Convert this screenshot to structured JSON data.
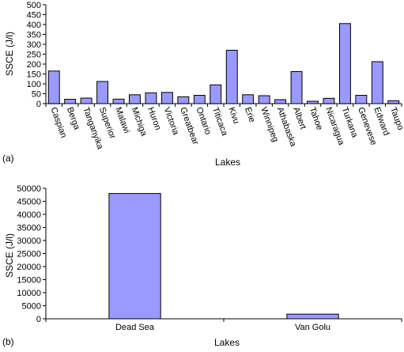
{
  "chart_data": [
    {
      "type": "bar",
      "panel_label": "(a)",
      "xlabel": "Lakes",
      "ylabel": "SSCE (J/l)",
      "categories": [
        "Caspian",
        "Berga",
        "Tanganyika",
        "Superior",
        "Malawi",
        "Michiga",
        "Huron",
        "Victoria",
        "Greatbear",
        "Ontario",
        "Titicaca",
        "Kivu",
        "Erie",
        "Winnipeg",
        "Athabaska",
        "Albert",
        "Tahoe",
        "Nicaragua",
        "Turkana",
        "Genevese",
        "Edward",
        "Taupo"
      ],
      "values": [
        165,
        22,
        28,
        112,
        23,
        45,
        55,
        57,
        35,
        42,
        95,
        270,
        45,
        40,
        20,
        162,
        12,
        27,
        405,
        42,
        212,
        15
      ],
      "ylim": [
        0,
        500
      ],
      "yticks": [
        "0",
        "50",
        "100",
        "150",
        "200",
        "250",
        "300",
        "350",
        "400",
        "450",
        "500"
      ],
      "bar_color": "#9999ff",
      "grid": false
    },
    {
      "type": "bar",
      "panel_label": "(b)",
      "xlabel": "Lakes",
      "ylabel": "SSCE (J/l)",
      "categories": [
        "Dead Sea",
        "Van Golu"
      ],
      "values": [
        48000,
        1800
      ],
      "ylim": [
        0,
        50000
      ],
      "yticks": [
        "0",
        "5000",
        "10000",
        "15000",
        "20000",
        "25000",
        "30000",
        "35000",
        "40000",
        "45000",
        "50000"
      ],
      "bar_color": "#9999ff",
      "grid": false
    }
  ]
}
